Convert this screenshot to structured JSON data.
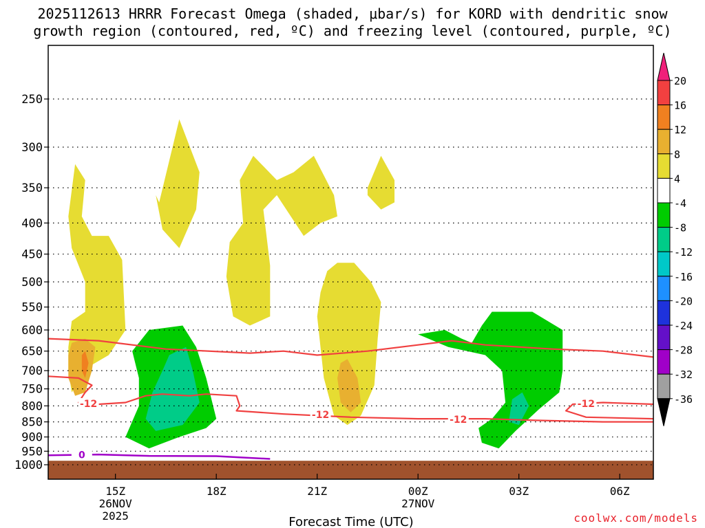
{
  "title_line1": "2025112613 HRRR Forecast Omega (shaded, μbar/s) for KORD with dendritic snow",
  "title_line2": "growth region (contoured, red, ºC) and freezing level (contoured, purple, ºC)",
  "credit": "coolwx.com/models",
  "chart_data": {
    "type": "contour",
    "title": "2025112613 HRRR Forecast Omega (shaded, μbar/s) for KORD with dendritic snow growth region (contoured, red, ºC) and freezing level (contoured, purple, ºC)",
    "xlabel": "Forecast Time (UTC)",
    "ylabel": "",
    "y_scale": "log-pressure (hPa), inverted",
    "y_ticks": [
      250,
      300,
      350,
      400,
      450,
      500,
      550,
      600,
      650,
      700,
      750,
      800,
      850,
      900,
      950,
      1000
    ],
    "ylim": [
      1000,
      200
    ],
    "x_ticks": [
      {
        "hour": 15,
        "label": "15Z",
        "label2": "26NOV",
        "label3": "2025"
      },
      {
        "hour": 18,
        "label": "18Z",
        "label2": "",
        "label3": ""
      },
      {
        "hour": 21,
        "label": "21Z",
        "label2": "",
        "label3": ""
      },
      {
        "hour": 24,
        "label": "00Z",
        "label2": "27NOV",
        "label3": ""
      },
      {
        "hour": 27,
        "label": "03Z",
        "label2": "",
        "label3": ""
      },
      {
        "hour": 30,
        "label": "06Z",
        "label2": "",
        "label3": ""
      }
    ],
    "xlim_hours_utc_from_26nov_00z": [
      13,
      31
    ],
    "grid": true,
    "colorbar": {
      "levels": [
        20,
        16,
        12,
        8,
        4,
        -4,
        -8,
        -12,
        -16,
        -20,
        -24,
        -28,
        -32,
        -36
      ],
      "colors": [
        "#f0207a",
        "#f24040",
        "#f08020",
        "#e8b030",
        "#e6dc32",
        "#ffffff",
        "#00cc00",
        "#00cc88",
        "#00c8c8",
        "#1e90ff",
        "#1e32dc",
        "#6410c8",
        "#a000c8",
        "#a0a0a0",
        "#000000"
      ]
    },
    "omega_regions": [
      {
        "value_range": "4 to 8",
        "color": "#e6dc32",
        "polygon": [
          [
            13.6,
            390
          ],
          [
            13.8,
            320
          ],
          [
            14.1,
            340
          ],
          [
            14.0,
            390
          ],
          [
            14.3,
            420
          ],
          [
            14.8,
            420
          ],
          [
            15.2,
            460
          ],
          [
            15.3,
            600
          ],
          [
            14.8,
            660
          ],
          [
            14.2,
            690
          ],
          [
            13.7,
            760
          ],
          [
            13.6,
            700
          ],
          [
            13.6,
            640
          ],
          [
            13.7,
            580
          ],
          [
            14.1,
            560
          ],
          [
            14.1,
            500
          ],
          [
            13.7,
            440
          ]
        ]
      },
      {
        "value_range": "8 to 12",
        "color": "#e8b030",
        "polygon": [
          [
            13.6,
            660
          ],
          [
            13.7,
            630
          ],
          [
            14.1,
            620
          ],
          [
            14.4,
            640
          ],
          [
            14.3,
            700
          ],
          [
            14.1,
            760
          ],
          [
            13.8,
            770
          ],
          [
            13.6,
            720
          ]
        ]
      },
      {
        "value_range": "12 to 16",
        "color": "#f08020",
        "polygon": [
          [
            14.0,
            660
          ],
          [
            14.1,
            650
          ],
          [
            14.2,
            680
          ],
          [
            14.1,
            720
          ],
          [
            14.0,
            700
          ]
        ]
      },
      {
        "value_range": "4 to 8",
        "color": "#e6dc32",
        "polygon": [
          [
            16.3,
            370
          ],
          [
            16.9,
            270
          ],
          [
            17.5,
            330
          ],
          [
            17.4,
            380
          ],
          [
            16.9,
            440
          ],
          [
            16.4,
            410
          ],
          [
            16.2,
            360
          ]
        ]
      },
      {
        "value_range": "4 to 8",
        "color": "#e6dc32",
        "polygon": [
          [
            18.7,
            340
          ],
          [
            19.1,
            310
          ],
          [
            19.8,
            340
          ],
          [
            20.3,
            330
          ],
          [
            20.9,
            310
          ],
          [
            21.5,
            360
          ],
          [
            21.6,
            390
          ],
          [
            21.1,
            400
          ],
          [
            20.6,
            420
          ],
          [
            19.8,
            360
          ],
          [
            19.4,
            380
          ],
          [
            19.6,
            470
          ],
          [
            19.6,
            570
          ],
          [
            19.0,
            590
          ],
          [
            18.5,
            570
          ],
          [
            18.3,
            490
          ],
          [
            18.4,
            430
          ],
          [
            18.8,
            400
          ]
        ]
      },
      {
        "value_range": "4 to 8",
        "color": "#e6dc32",
        "polygon": [
          [
            22.5,
            350
          ],
          [
            22.9,
            310
          ],
          [
            23.3,
            340
          ],
          [
            23.3,
            370
          ],
          [
            22.9,
            380
          ],
          [
            22.5,
            360
          ]
        ]
      },
      {
        "value_range": "4 to 8",
        "color": "#e6dc32",
        "polygon": [
          [
            21.3,
            480
          ],
          [
            21.6,
            465
          ],
          [
            22.1,
            465
          ],
          [
            22.6,
            500
          ],
          [
            22.9,
            540
          ],
          [
            22.8,
            620
          ],
          [
            22.7,
            740
          ],
          [
            22.3,
            830
          ],
          [
            21.9,
            860
          ],
          [
            21.5,
            830
          ],
          [
            21.2,
            720
          ],
          [
            21.0,
            570
          ],
          [
            21.1,
            520
          ]
        ]
      },
      {
        "value_range": "8 to 12",
        "color": "#e8b030",
        "polygon": [
          [
            21.7,
            680
          ],
          [
            21.9,
            670
          ],
          [
            22.2,
            720
          ],
          [
            22.3,
            790
          ],
          [
            22.0,
            820
          ],
          [
            21.7,
            790
          ],
          [
            21.6,
            720
          ]
        ]
      },
      {
        "value_range": "-8 to -4",
        "color": "#00cc00",
        "polygon": [
          [
            15.5,
            650
          ],
          [
            16.0,
            600
          ],
          [
            17.0,
            590
          ],
          [
            17.4,
            640
          ],
          [
            17.7,
            720
          ],
          [
            18.0,
            840
          ],
          [
            17.7,
            870
          ],
          [
            16.9,
            900
          ],
          [
            16.0,
            940
          ],
          [
            15.3,
            900
          ],
          [
            15.7,
            800
          ],
          [
            15.7,
            720
          ]
        ]
      },
      {
        "value_range": "-12 to -8",
        "color": "#00cc88",
        "polygon": [
          [
            16.6,
            660
          ],
          [
            17.1,
            640
          ],
          [
            17.3,
            700
          ],
          [
            17.5,
            790
          ],
          [
            17.0,
            860
          ],
          [
            16.2,
            880
          ],
          [
            15.9,
            840
          ],
          [
            16.1,
            760
          ],
          [
            16.4,
            700
          ]
        ]
      },
      {
        "value_range": "-8 to -4",
        "color": "#00cc00",
        "polygon": [
          [
            24.0,
            610
          ],
          [
            24.8,
            600
          ],
          [
            25.3,
            620
          ],
          [
            25.6,
            630
          ],
          [
            25.9,
            590
          ],
          [
            26.2,
            560
          ],
          [
            27.4,
            560
          ],
          [
            28.3,
            600
          ],
          [
            28.3,
            700
          ],
          [
            28.2,
            760
          ],
          [
            27.6,
            810
          ],
          [
            26.9,
            880
          ],
          [
            26.4,
            940
          ],
          [
            25.9,
            920
          ],
          [
            25.8,
            870
          ],
          [
            26.2,
            840
          ],
          [
            26.6,
            790
          ],
          [
            26.5,
            700
          ],
          [
            26.0,
            660
          ],
          [
            24.9,
            640
          ]
        ]
      },
      {
        "value_range": "-12 to -8",
        "color": "#00cc88",
        "polygon": [
          [
            26.8,
            780
          ],
          [
            27.1,
            760
          ],
          [
            27.3,
            800
          ],
          [
            27.0,
            860
          ],
          [
            26.7,
            850
          ]
        ]
      }
    ],
    "dgz_contours": [
      {
        "label": "",
        "color": "#f04040",
        "points": [
          [
            13,
            620
          ],
          [
            14.5,
            625
          ],
          [
            16.5,
            645
          ],
          [
            19.0,
            655
          ],
          [
            20.0,
            650
          ],
          [
            21.0,
            660
          ],
          [
            22.5,
            650
          ],
          [
            24.0,
            635
          ],
          [
            25.0,
            625
          ],
          [
            26.0,
            635
          ],
          [
            28.0,
            645
          ],
          [
            29.5,
            650
          ],
          [
            31,
            665
          ]
        ]
      },
      {
        "label": "-12",
        "color": "#f04040",
        "points": [
          [
            13,
            715
          ],
          [
            13.9,
            720
          ],
          [
            14.3,
            740
          ],
          [
            14.1,
            760
          ],
          [
            13.9,
            790
          ],
          [
            14.5,
            795
          ],
          [
            15.3,
            790
          ],
          [
            15.9,
            770
          ],
          [
            16.4,
            765
          ],
          [
            17.2,
            770
          ],
          [
            17.7,
            765
          ],
          [
            18.6,
            770
          ],
          [
            18.7,
            800
          ],
          [
            18.6,
            815
          ],
          [
            20.0,
            825
          ],
          [
            22.0,
            835
          ],
          [
            24.0,
            840
          ],
          [
            26.0,
            840
          ],
          [
            27.5,
            845
          ],
          [
            29.5,
            850
          ],
          [
            31,
            850
          ]
        ]
      },
      {
        "label": "-12",
        "color": "#f04040",
        "points": [
          [
            31,
            795
          ],
          [
            29.5,
            790
          ],
          [
            28.6,
            795
          ],
          [
            28.4,
            815
          ],
          [
            29.0,
            835
          ],
          [
            31,
            840
          ]
        ]
      }
    ],
    "freezing_level_contour": {
      "label": "0",
      "color": "#a000c8",
      "points": [
        [
          13,
          965
        ],
        [
          14.5,
          962
        ],
        [
          16.0,
          967
        ],
        [
          18.0,
          968
        ],
        [
          19.6,
          978
        ]
      ]
    },
    "terrain_below_hpa": 985
  }
}
